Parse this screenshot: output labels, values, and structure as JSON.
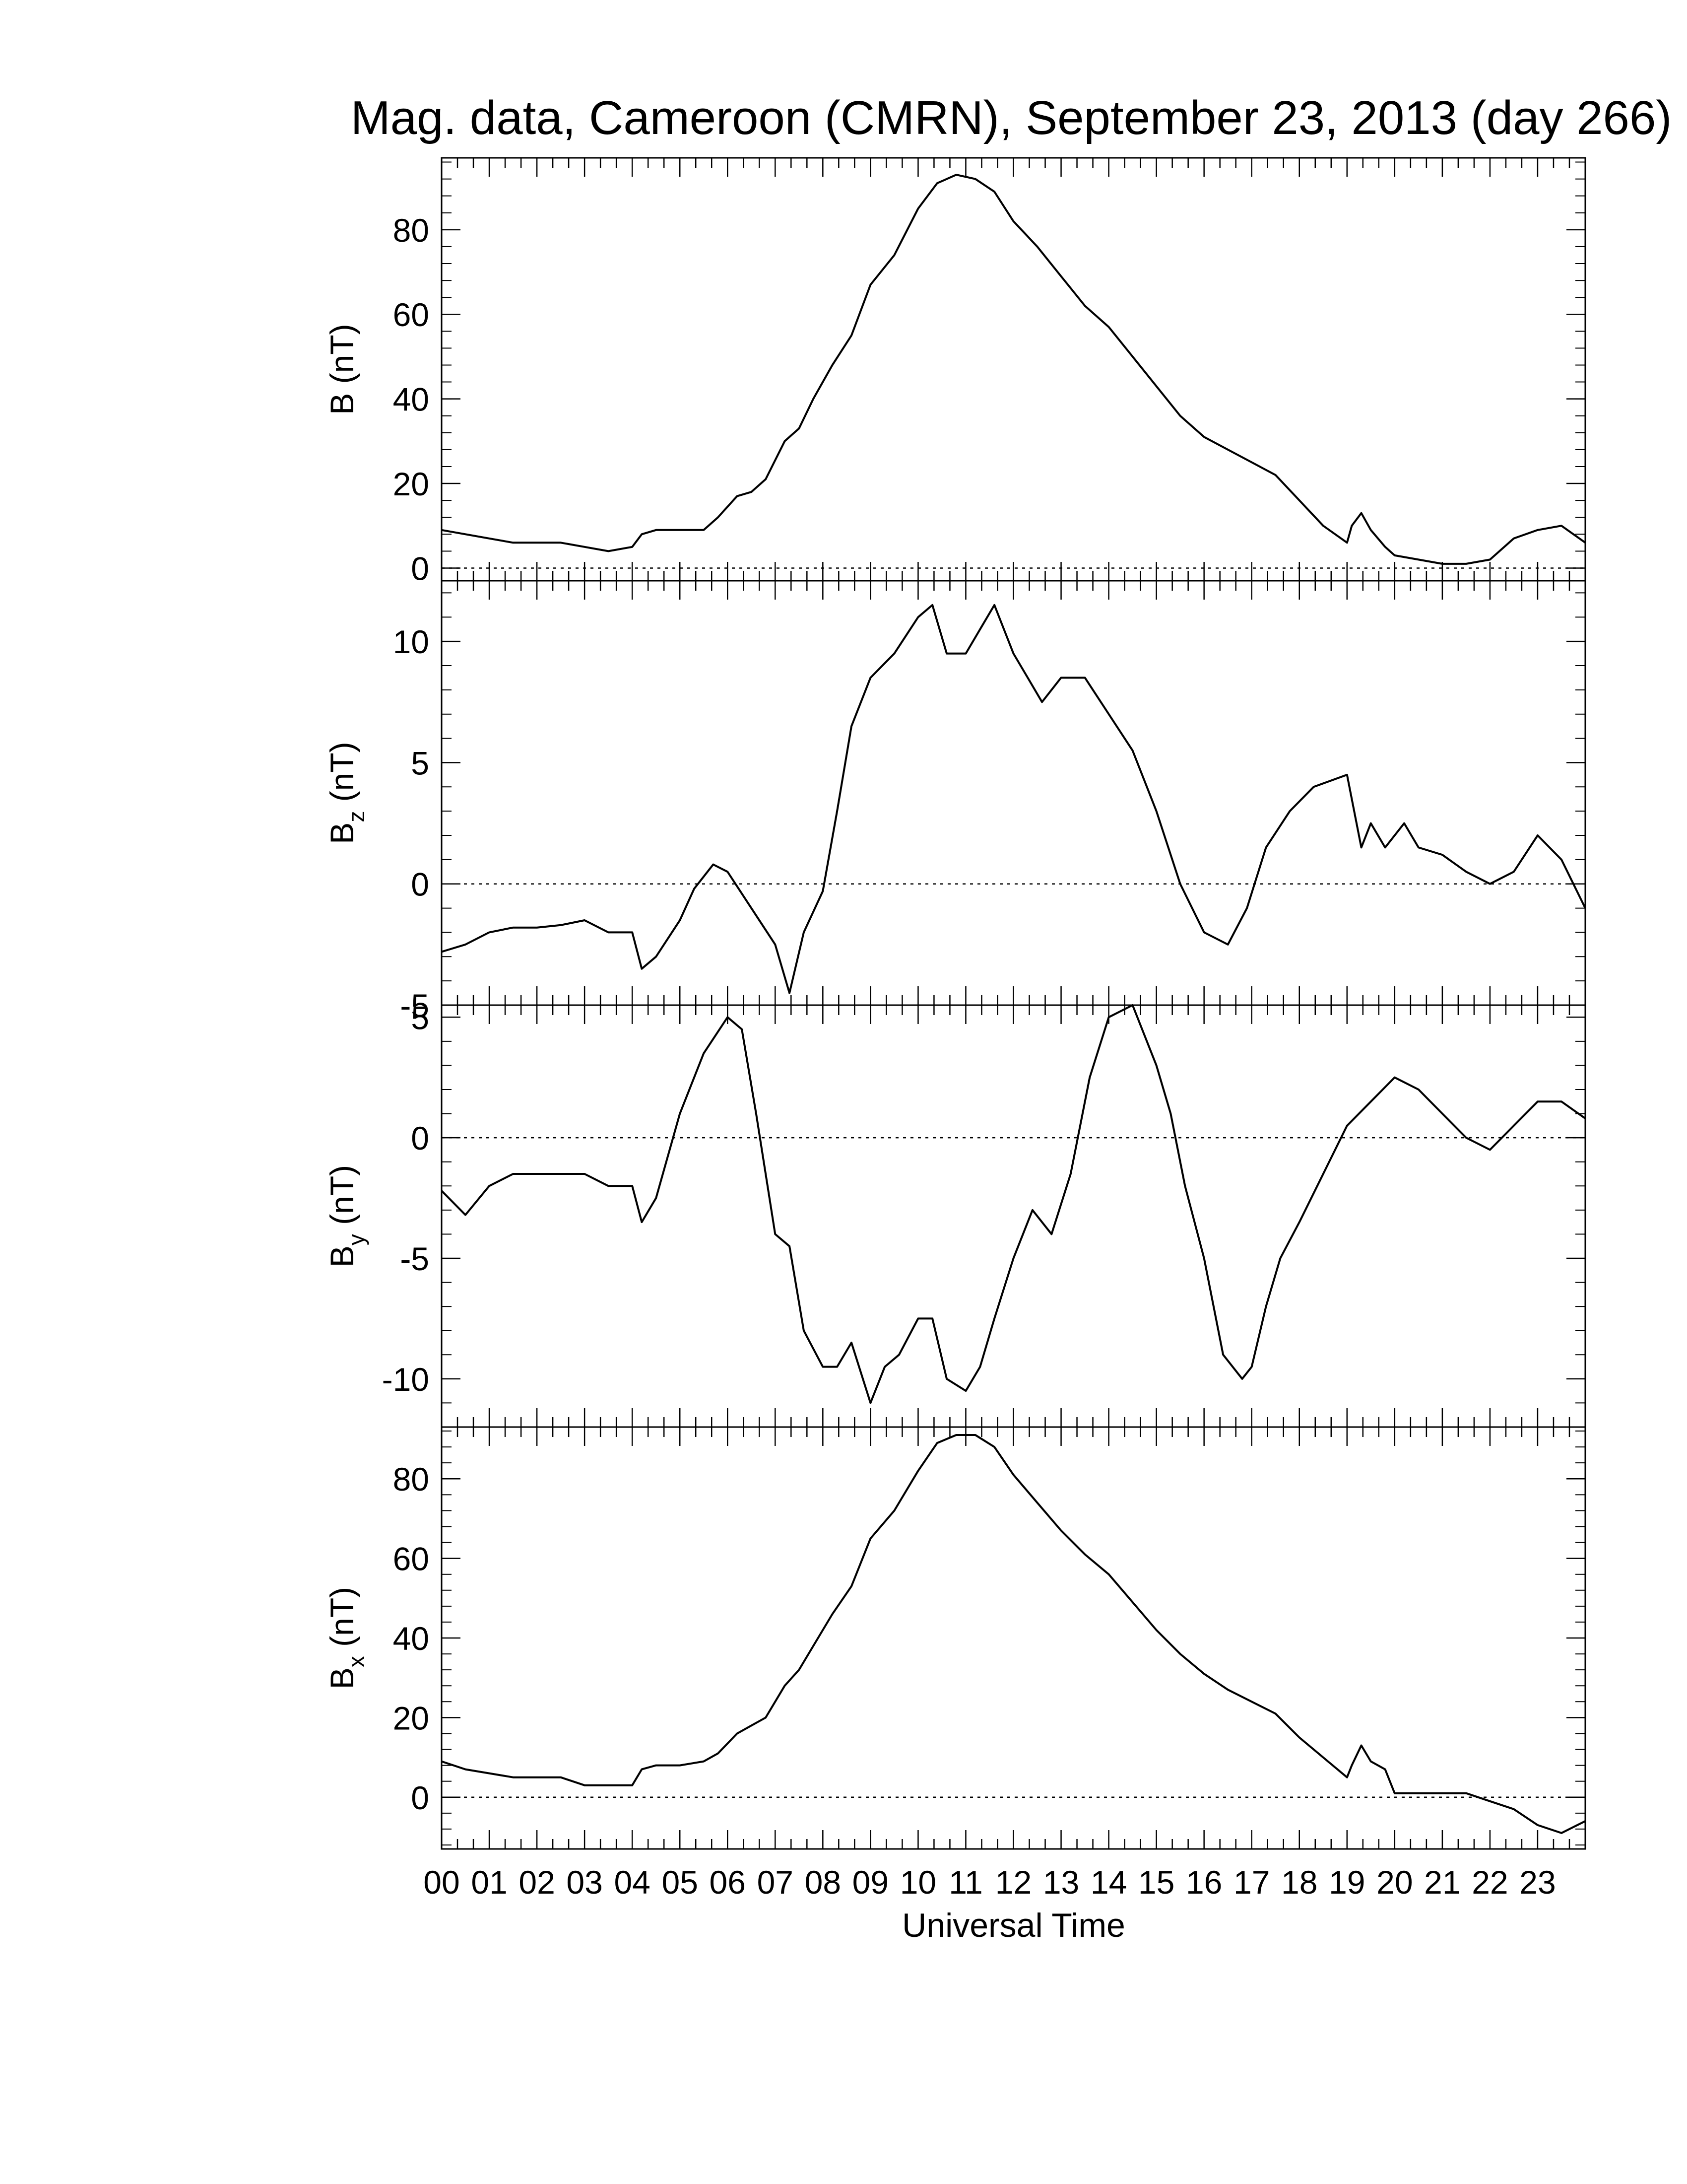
{
  "chart_data": {
    "title": "Mag. data, Cameroon (CMRN), September 23, 2013 (day 266)",
    "xlabel": "Universal Time",
    "x_tick_labels": [
      "00",
      "01",
      "02",
      "03",
      "04",
      "05",
      "06",
      "07",
      "08",
      "09",
      "10",
      "11",
      "12",
      "13",
      "14",
      "15",
      "16",
      "17",
      "18",
      "19",
      "20",
      "21",
      "22",
      "23"
    ],
    "xlim": [
      0,
      24
    ],
    "grid": false,
    "panels": [
      {
        "type": "line",
        "ylabel_main": "B",
        "ylabel_sub": "",
        "ylabel_unit": " (nT)",
        "ylim": [
          -3,
          97
        ],
        "yticks": [
          0,
          20,
          40,
          60,
          80
        ],
        "ytick_labels": [
          "0",
          "20",
          "40",
          "60",
          "80"
        ],
        "zero_line": true,
        "series": [
          {
            "x": [
              0,
              0.5,
              1,
              1.5,
              2,
              2.5,
              3,
              3.5,
              4,
              4.2,
              4.5,
              5,
              5.5,
              5.8,
              6.2,
              6.5,
              6.8,
              7.2,
              7.5,
              7.8,
              8.2,
              8.6,
              9,
              9.5,
              10,
              10.4,
              10.8,
              11.2,
              11.6,
              12,
              12.5,
              13,
              13.5,
              14,
              14.5,
              15,
              15.5,
              16,
              16.5,
              17,
              17.5,
              18,
              18.5,
              19,
              19.1,
              19.3,
              19.5,
              19.8,
              20,
              20.5,
              21,
              21.5,
              22,
              22.5,
              23,
              23.5,
              24
            ],
            "y": [
              9,
              8,
              7,
              6,
              6,
              6,
              5,
              4,
              5,
              8,
              9,
              9,
              9,
              12,
              17,
              18,
              21,
              30,
              33,
              40,
              48,
              55,
              67,
              74,
              85,
              91,
              93,
              92,
              89,
              82,
              76,
              69,
              62,
              57,
              50,
              43,
              36,
              31,
              28,
              25,
              22,
              16,
              10,
              6,
              10,
              13,
              9,
              5,
              3,
              2,
              1,
              1,
              2,
              7,
              9,
              10,
              6
            ]
          }
        ]
      },
      {
        "type": "line",
        "ylabel_main": "B",
        "ylabel_sub": "z",
        "ylabel_unit": " (nT)",
        "ylim": [
          -5,
          12.5
        ],
        "yticks": [
          -5,
          0,
          5,
          10
        ],
        "ytick_labels": [
          "-5",
          "0",
          "5",
          "10"
        ],
        "zero_line": true,
        "series": [
          {
            "x": [
              0,
              0.5,
              1,
              1.5,
              2,
              2.5,
              3,
              3.5,
              4,
              4.2,
              4.5,
              5,
              5.3,
              5.7,
              6,
              6.5,
              7,
              7.3,
              7.6,
              8,
              8.3,
              8.6,
              9,
              9.5,
              10,
              10.3,
              10.6,
              11,
              11.3,
              11.6,
              12,
              12.3,
              12.6,
              13,
              13.5,
              14,
              14.5,
              15,
              15.5,
              16,
              16.5,
              16.9,
              17.3,
              17.8,
              18.3,
              19,
              19.3,
              19.5,
              19.8,
              20.2,
              20.5,
              21,
              21.5,
              22,
              22.5,
              23,
              23.5,
              24
            ],
            "y": [
              -2.8,
              -2.5,
              -2,
              -1.8,
              -1.8,
              -1.7,
              -1.5,
              -2,
              -2,
              -3.5,
              -3,
              -1.5,
              -0.2,
              0.8,
              0.5,
              -1,
              -2.5,
              -4.5,
              -2,
              -0.3,
              3,
              6.5,
              8.5,
              9.5,
              11,
              11.5,
              9.5,
              9.5,
              10.5,
              11.5,
              9.5,
              8.5,
              7.5,
              8.5,
              8.5,
              7,
              5.5,
              3,
              0,
              -2,
              -2.5,
              -1,
              1.5,
              3,
              4,
              4.5,
              1.5,
              2.5,
              1.5,
              2.5,
              1.5,
              1.2,
              0.5,
              0,
              0.5,
              2,
              1,
              -1
            ]
          }
        ]
      },
      {
        "type": "line",
        "ylabel_main": "B",
        "ylabel_sub": "y",
        "ylabel_unit": " (nT)",
        "ylim": [
          -12,
          5.5
        ],
        "yticks": [
          -10,
          -5,
          0,
          5
        ],
        "ytick_labels": [
          "-10",
          "-5",
          "0",
          "5"
        ],
        "zero_line": true,
        "series": [
          {
            "x": [
              0,
              0.5,
              1,
              1.5,
              2,
              2.5,
              3,
              3.5,
              4,
              4.2,
              4.5,
              5,
              5.5,
              6,
              6.3,
              6.6,
              7,
              7.3,
              7.6,
              8,
              8.3,
              8.6,
              9,
              9.3,
              9.6,
              10,
              10.3,
              10.6,
              11,
              11.3,
              11.6,
              12,
              12.4,
              12.8,
              13.2,
              13.6,
              14,
              14.5,
              15,
              15.3,
              15.6,
              16,
              16.4,
              16.8,
              17,
              17.3,
              17.6,
              18,
              18.5,
              19,
              19.5,
              20,
              20.5,
              21,
              21.5,
              22,
              22.5,
              23,
              23.5,
              24
            ],
            "y": [
              -2.2,
              -3.2,
              -2,
              -1.5,
              -1.5,
              -1.5,
              -1.5,
              -2,
              -2,
              -3.5,
              -2.5,
              1,
              3.5,
              5,
              4.5,
              1,
              -4,
              -4.5,
              -8,
              -9.5,
              -9.5,
              -8.5,
              -11,
              -9.5,
              -9,
              -7.5,
              -7.5,
              -10,
              -10.5,
              -9.5,
              -7.5,
              -5,
              -3,
              -4,
              -1.5,
              2.5,
              5,
              5.5,
              3,
              1,
              -2,
              -5,
              -9,
              -10,
              -9.5,
              -7,
              -5,
              -3.5,
              -1.5,
              0.5,
              1.5,
              2.5,
              2,
              1,
              0,
              -0.5,
              0.5,
              1.5,
              1.5,
              0.8
            ]
          }
        ]
      },
      {
        "type": "line",
        "ylabel_main": "B",
        "ylabel_sub": "x",
        "ylabel_unit": " (nT)",
        "ylim": [
          -13,
          93
        ],
        "yticks": [
          0,
          20,
          40,
          60,
          80
        ],
        "ytick_labels": [
          "0",
          "20",
          "40",
          "60",
          "80"
        ],
        "zero_line": true,
        "series": [
          {
            "x": [
              0,
              0.5,
              1,
              1.5,
              2,
              2.5,
              3,
              3.5,
              4,
              4.2,
              4.5,
              5,
              5.5,
              5.8,
              6.2,
              6.5,
              6.8,
              7.2,
              7.5,
              7.8,
              8.2,
              8.6,
              9,
              9.5,
              10,
              10.4,
              10.8,
              11.2,
              11.6,
              12,
              12.5,
              13,
              13.5,
              14,
              14.5,
              15,
              15.5,
              16,
              16.5,
              17,
              17.5,
              18,
              18.5,
              19,
              19.1,
              19.3,
              19.5,
              19.8,
              20,
              20.5,
              21,
              21.5,
              22,
              22.5,
              23,
              23.5,
              24
            ],
            "y": [
              9,
              7,
              6,
              5,
              5,
              5,
              3,
              3,
              3,
              7,
              8,
              8,
              9,
              11,
              16,
              18,
              20,
              28,
              32,
              38,
              46,
              53,
              65,
              72,
              82,
              89,
              91,
              91,
              88,
              81,
              74,
              67,
              61,
              56,
              49,
              42,
              36,
              31,
              27,
              24,
              21,
              15,
              10,
              5,
              8,
              13,
              9,
              7,
              1,
              1,
              1,
              1,
              -1,
              -3,
              -7,
              -9,
              -6
            ]
          }
        ]
      }
    ]
  }
}
